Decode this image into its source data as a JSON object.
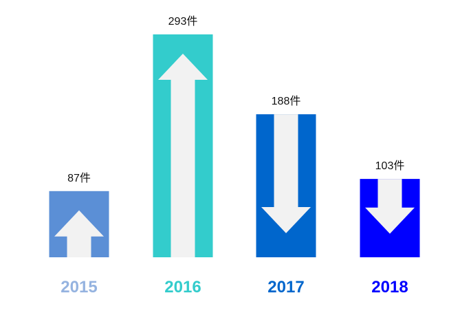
{
  "chart_data": {
    "type": "bar",
    "categories": [
      "2015",
      "2016",
      "2017",
      "2018"
    ],
    "values": [
      87,
      293,
      188,
      103
    ],
    "value_labels": [
      "87件",
      "293件",
      "188件",
      "103件"
    ],
    "directions": [
      "up",
      "up",
      "down",
      "down"
    ],
    "colors": [
      "#5b8fd6",
      "#33cccc",
      "#0066cc",
      "#0000ff"
    ],
    "year_label_colors": [
      "#95b3e0",
      "#33cccc",
      "#0066cc",
      "#0000ff"
    ],
    "arrow_color": "#f2f2f2",
    "title": "",
    "xlabel": "",
    "ylabel": "",
    "grid": false,
    "legend": "none"
  }
}
